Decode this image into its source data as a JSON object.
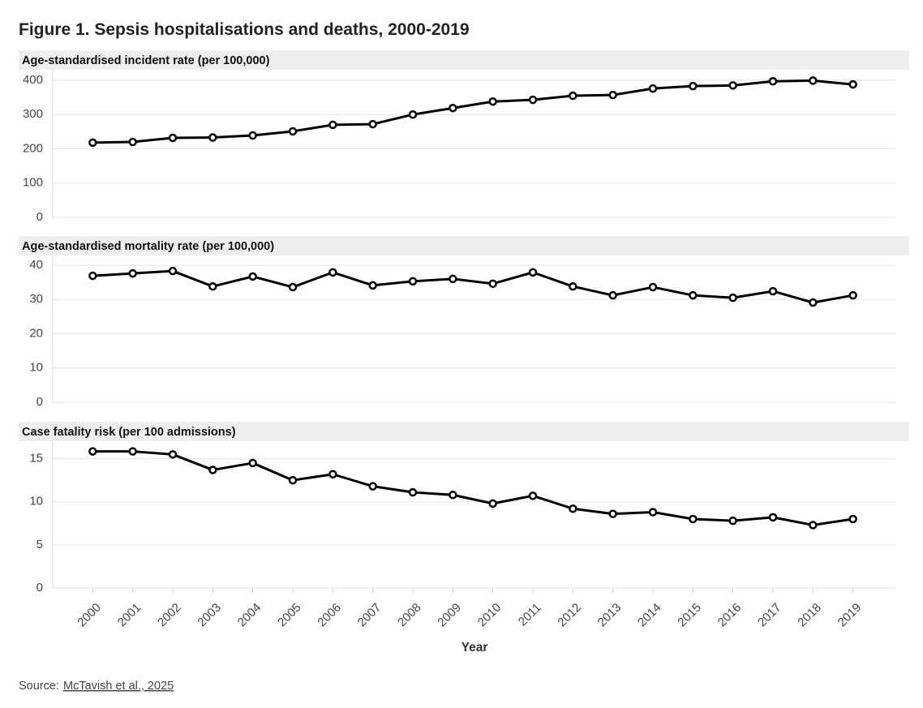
{
  "title": "Figure 1. Sepsis hospitalisations and deaths, 2000-2019",
  "source": {
    "label": "Source:",
    "link": "McTavish et al., 2025"
  },
  "chart_data": [
    {
      "type": "line",
      "title": "Age-standardised incident rate (per 100,000)",
      "x": [
        2000,
        2001,
        2002,
        2003,
        2004,
        2005,
        2006,
        2007,
        2008,
        2009,
        2010,
        2011,
        2012,
        2013,
        2014,
        2015,
        2016,
        2017,
        2018,
        2019
      ],
      "values": [
        218,
        220,
        232,
        233,
        239,
        251,
        270,
        272,
        300,
        319,
        338,
        343,
        355,
        357,
        376,
        383,
        385,
        397,
        399,
        388
      ],
      "xlim": [
        1999,
        2020
      ],
      "ylim": [
        0,
        400
      ],
      "yticks": [
        0,
        100,
        200,
        300,
        400
      ],
      "color": "#000000",
      "grid": true
    },
    {
      "type": "line",
      "title": "Age-standardised mortality rate (per 100,000)",
      "x": [
        2000,
        2001,
        2002,
        2003,
        2004,
        2005,
        2006,
        2007,
        2008,
        2009,
        2010,
        2011,
        2012,
        2013,
        2014,
        2015,
        2016,
        2017,
        2018,
        2019
      ],
      "values": [
        36.9,
        37.6,
        38.3,
        33.8,
        36.7,
        33.6,
        37.9,
        34.1,
        35.3,
        36.0,
        34.6,
        37.9,
        33.8,
        31.2,
        33.6,
        31.2,
        30.5,
        32.4,
        29.1,
        31.2
      ],
      "xlim": [
        1999,
        2020
      ],
      "ylim": [
        0,
        40
      ],
      "yticks": [
        0,
        10,
        20,
        30,
        40
      ],
      "color": "#000000",
      "grid": true
    },
    {
      "type": "line",
      "title": "Case fatality risk (per 100 admissions)",
      "x": [
        2000,
        2001,
        2002,
        2003,
        2004,
        2005,
        2006,
        2007,
        2008,
        2009,
        2010,
        2011,
        2012,
        2013,
        2014,
        2015,
        2016,
        2017,
        2018,
        2019
      ],
      "values": [
        15.85,
        15.85,
        15.5,
        13.7,
        14.5,
        12.5,
        13.2,
        11.8,
        11.1,
        10.8,
        9.8,
        10.7,
        9.2,
        8.6,
        8.8,
        8.0,
        7.8,
        8.2,
        7.3,
        8.0
      ],
      "xlim": [
        1999,
        2020
      ],
      "ylim": [
        0,
        16
      ],
      "yticks": [
        0,
        5,
        10,
        15
      ],
      "color": "#000000",
      "grid": true,
      "xticks": [
        2000,
        2001,
        2002,
        2003,
        2004,
        2005,
        2006,
        2007,
        2008,
        2009,
        2010,
        2011,
        2012,
        2013,
        2014,
        2015,
        2016,
        2017,
        2018,
        2019
      ],
      "x_label": "Year"
    }
  ]
}
